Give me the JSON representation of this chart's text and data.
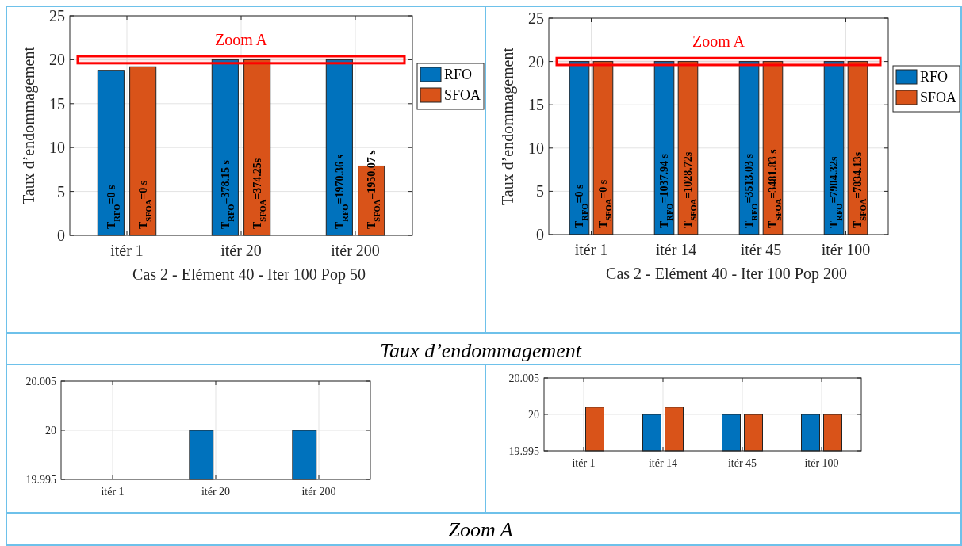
{
  "chart_data": [
    {
      "type": "bar",
      "categories": [
        "itér 1",
        "itér 20",
        "itér 200"
      ],
      "xlabel": "Cas 2 - Elément 40 - Iter 100 Pop 50",
      "ylabel": "Taux d’endommagement",
      "ylim": [
        0,
        25
      ],
      "yticks": [
        0,
        5,
        10,
        15,
        20,
        25
      ],
      "grid": true,
      "legend": "right",
      "series": [
        {
          "name": "RFO",
          "color": "#0072bd",
          "values": [
            18.8,
            20,
            20
          ]
        },
        {
          "name": "SFOA",
          "color": "#d95319",
          "values": [
            19.2,
            20,
            7.9
          ]
        }
      ],
      "bands": [
        {
          "axis": "y",
          "from": 19.6,
          "to": 20.4,
          "label": "Zoom A",
          "color": "#ff0000"
        }
      ],
      "annotations": [
        "Taux d’endommagement",
        {
          "text": "T$_{RFO}$=0 s",
          "x": "itér 1"
        },
        {
          "text": "T$_{SFOA}$=0 s",
          "x": "itér 1"
        },
        {
          "text": "T$_{RFO}$=378.15 s",
          "x": "itér 20"
        },
        {
          "text": "T$_{SFOA}$=374.25s",
          "x": "itér 20"
        },
        {
          "text": "T$_{RFO}$=1970.36 s",
          "x": "itér 200"
        },
        {
          "text": "T$_{SFOA}$=1950.07 s",
          "x": "itér 200"
        }
      ]
    },
    {
      "type": "bar",
      "categories": [
        "itér 1",
        "itér 14",
        "itér 45",
        "itér 100"
      ],
      "xlabel": "Cas 2 - Elément 40 - Iter 100 Pop 200",
      "ylabel": "Taux d’endommagement",
      "ylim": [
        0,
        25
      ],
      "yticks": [
        0,
        5,
        10,
        15,
        20,
        25
      ],
      "grid": true,
      "legend": "right",
      "series": [
        {
          "name": "RFO",
          "color": "#0072bd",
          "values": [
            20,
            20,
            20,
            20
          ]
        },
        {
          "name": "SFOA",
          "color": "#d95319",
          "values": [
            20,
            20,
            20,
            20
          ]
        }
      ],
      "bands": [
        {
          "axis": "y",
          "from": 19.6,
          "to": 20.4,
          "label": "Zoom A",
          "color": "#ff0000"
        }
      ],
      "annotations": [
        {
          "text": "T$_{RFO}$=0 s",
          "x": "itér 1"
        },
        {
          "text": "T$_{SFOA}$=0 s",
          "x": "itér 1"
        },
        {
          "text": "T$_{RFO}$=1037.94 s",
          "x": "itér 14"
        },
        {
          "text": "T$_{SFOA}$=1028.72s",
          "x": "itér 14"
        },
        {
          "text": "T$_{RFO}$=3513.03 s",
          "x": "itér 45"
        },
        {
          "text": "T$_{SFOA}$=3481.83 s",
          "x": "itér 45"
        },
        {
          "text": "T$_{RFO}$=7904.32s",
          "x": "itér 100"
        },
        {
          "text": "T$_{SFOA}$=7834.13s",
          "x": "itér 100"
        }
      ]
    },
    {
      "type": "bar",
      "categories": [
        "itér 1",
        "itér 20",
        "itér 200"
      ],
      "ylim": [
        19.995,
        20.005
      ],
      "yticks": [
        19.995,
        20,
        20.005
      ],
      "grid": true,
      "series": [
        {
          "color": "#0072bd",
          "values": [
            null,
            20,
            20
          ]
        },
        {
          "values": [
            null,
            null,
            null
          ]
        }
      ],
      "annotations": [
        "Zoom A"
      ]
    },
    {
      "type": "bar",
      "categories": [
        "itér 1",
        "itér 14",
        "itér 45",
        "itér 100"
      ],
      "ylim": [
        19.995,
        20.005
      ],
      "yticks": [
        19.995,
        20,
        20.005
      ],
      "grid": true,
      "series": [
        {
          "color": "#0072bd",
          "values": [
            null,
            20,
            20,
            20
          ]
        },
        {
          "color": "#d95319",
          "values": [
            20.001,
            20.001,
            20,
            20
          ]
        }
      ]
    }
  ]
}
